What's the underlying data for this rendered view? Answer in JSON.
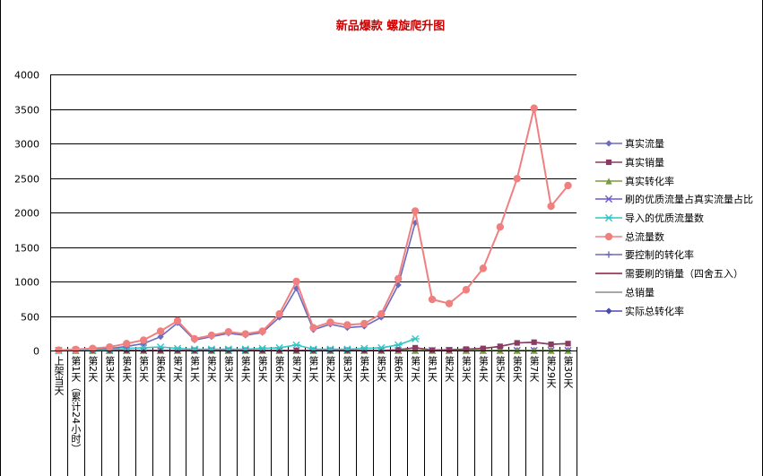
{
  "chart_data": {
    "type": "line",
    "title": "新品爆款 螺旋爬升图",
    "ylim": [
      0,
      4000
    ],
    "yticks": [
      "0",
      "500",
      "1000",
      "1500",
      "2000",
      "2500",
      "3000",
      "3500",
      "4000"
    ],
    "grid": true,
    "legend_position": "right",
    "categories": [
      "上架当天",
      "第1天（累计24小时）",
      "第2天",
      "第3天",
      "第4天",
      "第5天",
      "第6天",
      "第7天",
      "第1天",
      "第2天",
      "第3天",
      "第4天",
      "第5天",
      "第6天",
      "第7天",
      "第1天",
      "第2天",
      "第3天",
      "第4天",
      "第5天",
      "第6天",
      "第7天",
      "第1天",
      "第2天",
      "第3天",
      "第4天",
      "第5天",
      "第6天",
      "第7天",
      "第29天",
      "第30天"
    ],
    "series": [
      {
        "name": "真实流量",
        "color": "#6b6bbf",
        "marker": "diamond",
        "values": [
          5,
          10,
          20,
          30,
          60,
          100,
          200,
          400,
          150,
          200,
          250,
          220,
          260,
          480,
          900,
          300,
          380,
          330,
          350,
          480,
          950,
          1850,
          null,
          null,
          null,
          null,
          null,
          null,
          null,
          null,
          null
        ]
      },
      {
        "name": "真实销量",
        "color": "#8b3a62",
        "marker": "square",
        "values": [
          0,
          0,
          0,
          0,
          0,
          0,
          0,
          0,
          0,
          0,
          0,
          0,
          0,
          0,
          0,
          0,
          0,
          0,
          0,
          0,
          10,
          40,
          5,
          10,
          20,
          30,
          60,
          110,
          120,
          90,
          100
        ]
      },
      {
        "name": "真实转化率",
        "color": "#7a9a3a",
        "marker": "triangle",
        "values": [
          0,
          0,
          0,
          0,
          0,
          0,
          0,
          0,
          0,
          0,
          0,
          0,
          0,
          0,
          0,
          0,
          0,
          0,
          0,
          0,
          0,
          0,
          0,
          0,
          0,
          0,
          0,
          0,
          0,
          0,
          0
        ]
      },
      {
        "name": "刷的优质流量占真实流量占比",
        "color": "#6a5acd",
        "marker": "x",
        "values": [
          0,
          0,
          0,
          0,
          0,
          0,
          0,
          0,
          0,
          0,
          0,
          0,
          0,
          0,
          0,
          0,
          0,
          0,
          0,
          0,
          0,
          0,
          0,
          0,
          0,
          0,
          0,
          0,
          0,
          0,
          0
        ]
      },
      {
        "name": "导入的优质流量数",
        "color": "#33c6c6",
        "marker": "star",
        "values": [
          0,
          5,
          10,
          15,
          30,
          40,
          50,
          30,
          20,
          20,
          20,
          20,
          30,
          40,
          80,
          20,
          20,
          20,
          30,
          40,
          80,
          170,
          null,
          null,
          null,
          null,
          null,
          null,
          null,
          null,
          null
        ]
      },
      {
        "name": "总流量数",
        "color": "#f08080",
        "marker": "circle",
        "values": [
          5,
          15,
          30,
          50,
          100,
          150,
          280,
          430,
          170,
          220,
          270,
          240,
          280,
          530,
          1000,
          330,
          410,
          370,
          390,
          530,
          1040,
          2020,
          740,
          680,
          880,
          1190,
          1790,
          2490,
          3510,
          2090,
          2390
        ]
      },
      {
        "name": "要控制的转化率",
        "color": "#6b6bbf",
        "marker": "plus",
        "values": [
          0,
          0,
          0,
          0,
          0,
          0,
          0,
          0,
          0,
          0,
          0,
          0,
          0,
          0,
          0,
          0,
          0,
          0,
          0,
          0,
          0,
          0,
          0,
          0,
          0,
          0,
          0,
          0,
          0,
          0,
          0
        ]
      },
      {
        "name": "需要刷的销量（四舍五入）",
        "color": "#8b1a3a",
        "marker": "none",
        "values": [
          0,
          0,
          0,
          0,
          0,
          0,
          0,
          0,
          0,
          0,
          0,
          0,
          0,
          0,
          0,
          0,
          0,
          0,
          0,
          0,
          0,
          0,
          0,
          0,
          0,
          0,
          0,
          0,
          0,
          0,
          0
        ]
      },
      {
        "name": "总销量",
        "color": "#8c8c8c",
        "marker": "none",
        "values": [
          0,
          0,
          0,
          0,
          0,
          0,
          0,
          0,
          0,
          0,
          0,
          0,
          0,
          0,
          0,
          0,
          0,
          0,
          0,
          0,
          10,
          40,
          5,
          10,
          20,
          30,
          60,
          110,
          120,
          90,
          100
        ]
      },
      {
        "name": "实际总转化率",
        "color": "#4a4ab0",
        "marker": "diamond",
        "values": [
          0,
          0,
          0,
          0,
          0,
          0,
          0,
          0,
          0,
          0,
          0,
          0,
          0,
          0,
          0,
          0,
          0,
          0,
          0,
          0,
          0,
          0,
          0,
          0,
          0,
          0,
          0,
          0,
          0,
          0,
          0
        ]
      }
    ]
  }
}
